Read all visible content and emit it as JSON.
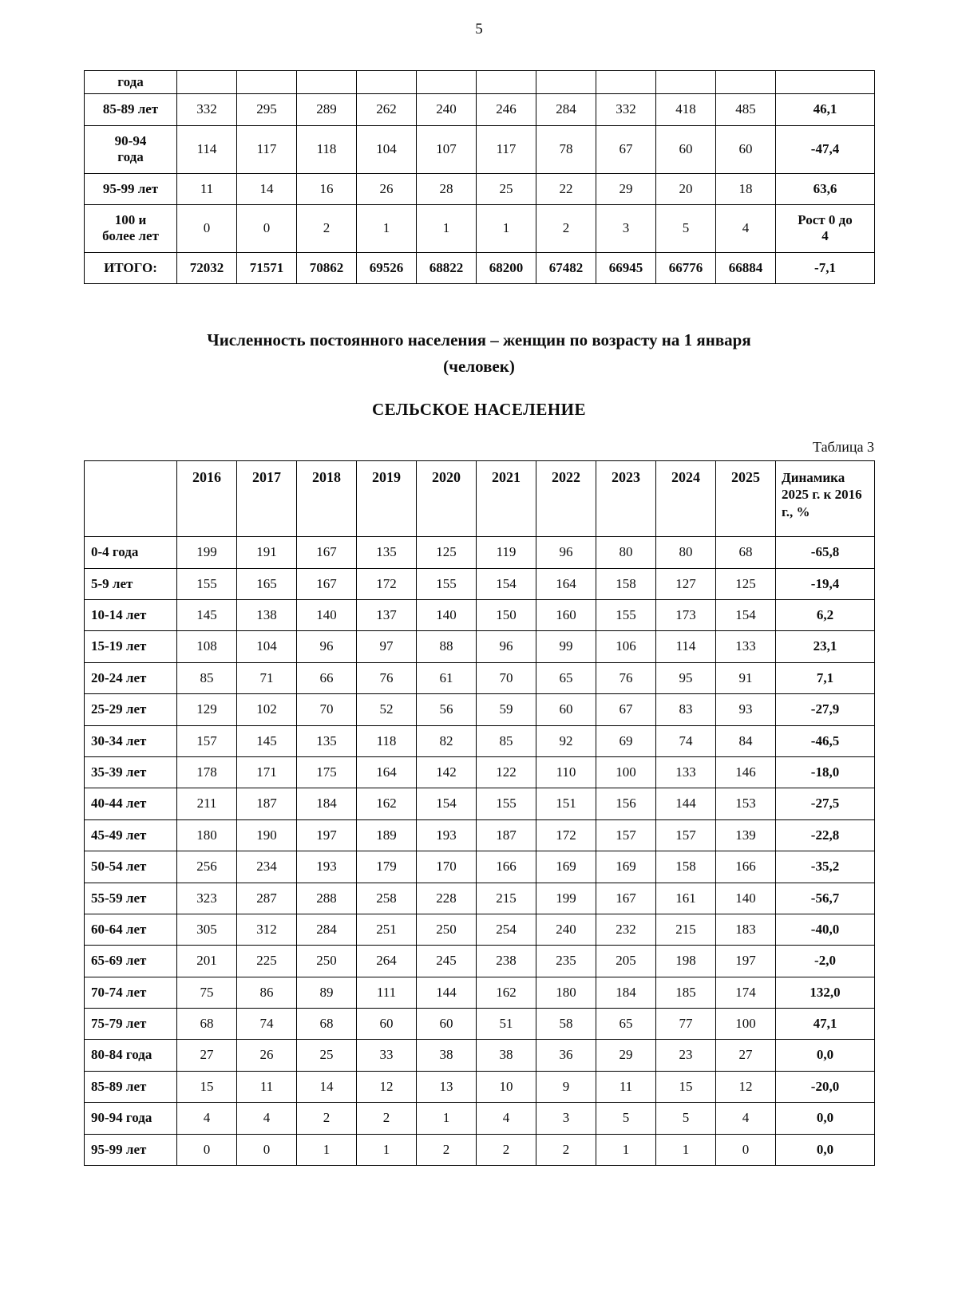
{
  "page": {
    "number": "5"
  },
  "table1": {
    "rows": [
      {
        "label": "года",
        "values": [
          "",
          "",
          "",
          "",
          "",
          "",
          "",
          "",
          "",
          ""
        ],
        "dynamics": ""
      },
      {
        "label": "85-89 лет",
        "values": [
          "332",
          "295",
          "289",
          "262",
          "240",
          "246",
          "284",
          "332",
          "418",
          "485"
        ],
        "dynamics": "46,1"
      },
      {
        "label": "90-94\nгода",
        "values": [
          "114",
          "117",
          "118",
          "104",
          "107",
          "117",
          "78",
          "67",
          "60",
          "60"
        ],
        "dynamics": "-47,4"
      },
      {
        "label": "95-99 лет",
        "values": [
          "11",
          "14",
          "16",
          "26",
          "28",
          "25",
          "22",
          "29",
          "20",
          "18"
        ],
        "dynamics": "63,6"
      },
      {
        "label": "100 и\nболее лет",
        "values": [
          "0",
          "0",
          "2",
          "1",
          "1",
          "1",
          "2",
          "3",
          "5",
          "4"
        ],
        "dynamics": "Рост 0 до\n4"
      },
      {
        "label": "ИТОГО:",
        "values": [
          "72032",
          "71571",
          "70862",
          "69526",
          "68822",
          "68200",
          "67482",
          "66945",
          "66776",
          "66884"
        ],
        "dynamics": "-7,1"
      }
    ]
  },
  "heading": {
    "title_line1": "Численность постоянного населения – женщин по возрасту на 1 января",
    "title_line2": "(человек)",
    "subtitle": "СЕЛЬСКОЕ НАСЕЛЕНИЕ",
    "caption": "Таблица 3"
  },
  "table2": {
    "year_headers": [
      "2016",
      "2017",
      "2018",
      "2019",
      "2020",
      "2021",
      "2022",
      "2023",
      "2024",
      "2025"
    ],
    "dynamics_header": "Динамика 2025 г. к 2016 г., %",
    "rows": [
      {
        "label": "0-4 года",
        "values": [
          "199",
          "191",
          "167",
          "135",
          "125",
          "119",
          "96",
          "80",
          "80",
          "68"
        ],
        "dynamics": "-65,8"
      },
      {
        "label": "5-9 лет",
        "values": [
          "155",
          "165",
          "167",
          "172",
          "155",
          "154",
          "164",
          "158",
          "127",
          "125"
        ],
        "dynamics": "-19,4"
      },
      {
        "label": "10-14 лет",
        "values": [
          "145",
          "138",
          "140",
          "137",
          "140",
          "150",
          "160",
          "155",
          "173",
          "154"
        ],
        "dynamics": "6,2"
      },
      {
        "label": "15-19 лет",
        "values": [
          "108",
          "104",
          "96",
          "97",
          "88",
          "96",
          "99",
          "106",
          "114",
          "133"
        ],
        "dynamics": "23,1"
      },
      {
        "label": "20-24 лет",
        "values": [
          "85",
          "71",
          "66",
          "76",
          "61",
          "70",
          "65",
          "76",
          "95",
          "91"
        ],
        "dynamics": "7,1"
      },
      {
        "label": "25-29 лет",
        "values": [
          "129",
          "102",
          "70",
          "52",
          "56",
          "59",
          "60",
          "67",
          "83",
          "93"
        ],
        "dynamics": "-27,9"
      },
      {
        "label": "30-34 лет",
        "values": [
          "157",
          "145",
          "135",
          "118",
          "82",
          "85",
          "92",
          "69",
          "74",
          "84"
        ],
        "dynamics": "-46,5"
      },
      {
        "label": "35-39 лет",
        "values": [
          "178",
          "171",
          "175",
          "164",
          "142",
          "122",
          "110",
          "100",
          "133",
          "146"
        ],
        "dynamics": "-18,0"
      },
      {
        "label": "40-44 лет",
        "values": [
          "211",
          "187",
          "184",
          "162",
          "154",
          "155",
          "151",
          "156",
          "144",
          "153"
        ],
        "dynamics": "-27,5"
      },
      {
        "label": "45-49 лет",
        "values": [
          "180",
          "190",
          "197",
          "189",
          "193",
          "187",
          "172",
          "157",
          "157",
          "139"
        ],
        "dynamics": "-22,8"
      },
      {
        "label": "50-54 лет",
        "values": [
          "256",
          "234",
          "193",
          "179",
          "170",
          "166",
          "169",
          "169",
          "158",
          "166"
        ],
        "dynamics": "-35,2"
      },
      {
        "label": "55-59 лет",
        "values": [
          "323",
          "287",
          "288",
          "258",
          "228",
          "215",
          "199",
          "167",
          "161",
          "140"
        ],
        "dynamics": "-56,7"
      },
      {
        "label": "60-64 лет",
        "values": [
          "305",
          "312",
          "284",
          "251",
          "250",
          "254",
          "240",
          "232",
          "215",
          "183"
        ],
        "dynamics": "-40,0"
      },
      {
        "label": "65-69 лет",
        "values": [
          "201",
          "225",
          "250",
          "264",
          "245",
          "238",
          "235",
          "205",
          "198",
          "197"
        ],
        "dynamics": "-2,0"
      },
      {
        "label": "70-74 лет",
        "values": [
          "75",
          "86",
          "89",
          "111",
          "144",
          "162",
          "180",
          "184",
          "185",
          "174"
        ],
        "dynamics": "132,0"
      },
      {
        "label": "75-79 лет",
        "values": [
          "68",
          "74",
          "68",
          "60",
          "60",
          "51",
          "58",
          "65",
          "77",
          "100"
        ],
        "dynamics": "47,1"
      },
      {
        "label": "80-84 года",
        "values": [
          "27",
          "26",
          "25",
          "33",
          "38",
          "38",
          "36",
          "29",
          "23",
          "27"
        ],
        "dynamics": "0,0"
      },
      {
        "label": "85-89 лет",
        "values": [
          "15",
          "11",
          "14",
          "12",
          "13",
          "10",
          "9",
          "11",
          "15",
          "12"
        ],
        "dynamics": "-20,0"
      },
      {
        "label": "90-94 года",
        "values": [
          "4",
          "4",
          "2",
          "2",
          "1",
          "4",
          "3",
          "5",
          "5",
          "4"
        ],
        "dynamics": "0,0"
      },
      {
        "label": "95-99 лет",
        "values": [
          "0",
          "0",
          "1",
          "1",
          "2",
          "2",
          "2",
          "1",
          "1",
          "0"
        ],
        "dynamics": "0,0"
      }
    ]
  }
}
